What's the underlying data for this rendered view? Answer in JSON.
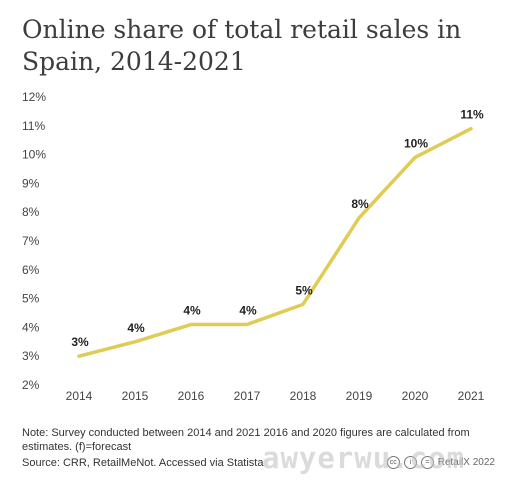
{
  "header": {
    "title": "Online share of total retail sales in Spain, 2014-2021"
  },
  "chart_data": {
    "type": "line",
    "title": "Online share of total retail sales in Spain, 2014-2021",
    "x": [
      "2014",
      "2015",
      "2016",
      "2017",
      "2018",
      "2019",
      "2020",
      "2021"
    ],
    "series": [
      {
        "values": [
          3.0,
          3.5,
          4.1,
          4.1,
          4.8,
          7.8,
          9.9,
          10.9
        ],
        "data_labels": [
          "3%",
          "4%",
          "4%",
          "4%",
          "5%",
          "8%",
          "10%",
          "11%"
        ]
      }
    ],
    "ylim": [
      2,
      12
    ],
    "yticks": [
      "2%",
      "3%",
      "4%",
      "5%",
      "6%",
      "7%",
      "8%",
      "9%",
      "10%",
      "11%",
      "12%"
    ],
    "xlabel": "",
    "ylabel": "",
    "grid": false,
    "line_color": "#e0cb55"
  },
  "footer": {
    "note": "Note: Survey conducted between 2014 and 2021 2016 and 2020 figures are calculated from estimates. (f)=forecast",
    "source": "Source: CRR, RetailMeNot. Accessed via Statista",
    "brand": "RetailX 2022",
    "watermark": "awyerwu.com"
  }
}
